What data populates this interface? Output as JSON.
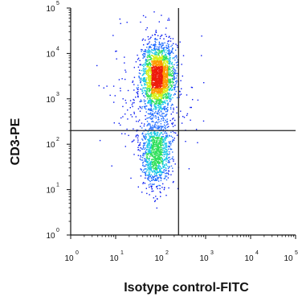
{
  "chart_data": {
    "type": "scatter",
    "style": "flow-cytometry pseudocolor density dot plot",
    "title": "",
    "xlabel": "Isotype control-FITC",
    "ylabel": "CD3-PE",
    "x_scale": "log",
    "y_scale": "log",
    "xlim": [
      1,
      100000
    ],
    "ylim": [
      1,
      100000
    ],
    "x_ticks": [
      {
        "base": "10",
        "exp": "0",
        "value": 1
      },
      {
        "base": "10",
        "exp": "1",
        "value": 10
      },
      {
        "base": "10",
        "exp": "2",
        "value": 100
      },
      {
        "base": "10",
        "exp": "3",
        "value": 1000
      },
      {
        "base": "10",
        "exp": "4",
        "value": 10000
      },
      {
        "base": "10",
        "exp": "5",
        "value": 100000
      }
    ],
    "y_ticks": [
      {
        "base": "10",
        "exp": "0",
        "value": 1
      },
      {
        "base": "10",
        "exp": "1",
        "value": 10
      },
      {
        "base": "10",
        "exp": "2",
        "value": 100
      },
      {
        "base": "10",
        "exp": "3",
        "value": 1000
      },
      {
        "base": "10",
        "exp": "4",
        "value": 10000
      },
      {
        "base": "10",
        "exp": "5",
        "value": 100000
      }
    ],
    "quadrant_gate": {
      "x": 250,
      "y": 200
    },
    "populations": [
      {
        "center": [
          90,
          3000
        ],
        "spread_log10": [
          0.17,
          0.38
        ],
        "weight": 0.62
      },
      {
        "center": [
          80,
          60
        ],
        "spread_log10": [
          0.17,
          0.35
        ],
        "weight": 0.3
      },
      {
        "center": [
          60,
          1000
        ],
        "spread_log10": [
          0.45,
          0.7
        ],
        "weight": 0.08
      }
    ],
    "colormap": [
      "#0b1cf2",
      "#1f6bff",
      "#19c8e6",
      "#2fe05a",
      "#d8ef16",
      "#ff9a00",
      "#ee1c0c"
    ],
    "grid": false,
    "legend": "none"
  }
}
